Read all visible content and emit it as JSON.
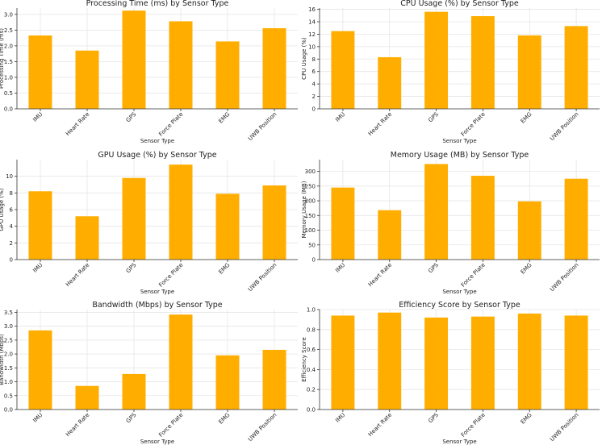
{
  "colors": {
    "bar": "#ffae00",
    "grid": "#e6e6e6",
    "axis": "#333333"
  },
  "chart_data": [
    {
      "type": "bar",
      "title": "Processing Time (ms) by Sensor Type",
      "xlabel": "Sensor Type",
      "ylabel": "Processing Time (ms)",
      "categories": [
        "IMU",
        "Heart Rate",
        "GPS",
        "Force Plate",
        "EMG",
        "UWB Position"
      ],
      "values": [
        2.33,
        1.85,
        3.12,
        2.78,
        2.14,
        2.56
      ],
      "ylim": [
        0,
        3.2
      ],
      "yticks": [
        0,
        0.5,
        1.0,
        1.5,
        2.0,
        2.5,
        3.0
      ],
      "ytick_labels": [
        "0.0",
        "0.5",
        "1.0",
        "1.5",
        "2.0",
        "2.5",
        "3.0"
      ],
      "grid": true
    },
    {
      "type": "bar",
      "title": "CPU Usage (%) by Sensor Type",
      "xlabel": "Sensor Type",
      "ylabel": "CPU Usage (%)",
      "categories": [
        "IMU",
        "Heart Rate",
        "GPS",
        "Force Plate",
        "EMG",
        "UWB Position"
      ],
      "values": [
        12.5,
        8.3,
        15.6,
        14.9,
        11.8,
        13.3
      ],
      "ylim": [
        0,
        16.2
      ],
      "yticks": [
        0,
        2,
        4,
        6,
        8,
        10,
        12,
        14,
        16
      ],
      "ytick_labels": [
        "0",
        "2",
        "4",
        "6",
        "8",
        "10",
        "12",
        "14",
        "16"
      ],
      "grid": true
    },
    {
      "type": "bar",
      "title": "GPU Usage (%) by Sensor Type",
      "xlabel": "Sensor Type",
      "ylabel": "GPU Usage (%)",
      "categories": [
        "IMU",
        "Heart Rate",
        "GPS",
        "Force Plate",
        "EMG",
        "UWB Position"
      ],
      "values": [
        8.2,
        5.2,
        9.8,
        11.4,
        7.9,
        8.9
      ],
      "ylim": [
        0,
        12
      ],
      "yticks": [
        0,
        2,
        4,
        6,
        8,
        10
      ],
      "ytick_labels": [
        "0",
        "2",
        "4",
        "6",
        "8",
        "10"
      ],
      "grid": true
    },
    {
      "type": "bar",
      "title": "Memory Usage (MB) by Sensor Type",
      "xlabel": "Sensor Type",
      "ylabel": "Memory Usage (MB)",
      "categories": [
        "IMU",
        "Heart Rate",
        "GPS",
        "Force Plate",
        "EMG",
        "UWB Position"
      ],
      "values": [
        245,
        168,
        325,
        285,
        198,
        275
      ],
      "ylim": [
        0,
        340
      ],
      "yticks": [
        0,
        50,
        100,
        150,
        200,
        250,
        300
      ],
      "ytick_labels": [
        "0",
        "50",
        "100",
        "150",
        "200",
        "250",
        "300"
      ],
      "grid": true
    },
    {
      "type": "bar",
      "title": "Bandwidth (Mbps) by Sensor Type",
      "xlabel": "Sensor Type",
      "ylabel": "Bandwidth (Mbps)",
      "categories": [
        "IMU",
        "Heart Rate",
        "GPS",
        "Force Plate",
        "EMG",
        "UWB Position"
      ],
      "values": [
        2.85,
        0.85,
        1.28,
        3.42,
        1.95,
        2.15
      ],
      "ylim": [
        0,
        3.6
      ],
      "yticks": [
        0,
        0.5,
        1.0,
        1.5,
        2.0,
        2.5,
        3.0,
        3.5
      ],
      "ytick_labels": [
        "0.0",
        "0.5",
        "1.0",
        "1.5",
        "2.0",
        "2.5",
        "3.0",
        "3.5"
      ],
      "grid": true
    },
    {
      "type": "bar",
      "title": "Efficiency Score by Sensor Type",
      "xlabel": "Sensor Type",
      "ylabel": "Efficiency Score",
      "categories": [
        "IMU",
        "Heart Rate",
        "GPS",
        "Force Plate",
        "EMG",
        "UWB Position"
      ],
      "values": [
        0.94,
        0.97,
        0.92,
        0.93,
        0.96,
        0.94
      ],
      "ylim": [
        0,
        1.0
      ],
      "yticks": [
        0,
        0.2,
        0.4,
        0.6,
        0.8,
        1.0
      ],
      "ytick_labels": [
        "0.0",
        "0.2",
        "0.4",
        "0.6",
        "0.8",
        "1.0"
      ],
      "grid": true
    }
  ]
}
